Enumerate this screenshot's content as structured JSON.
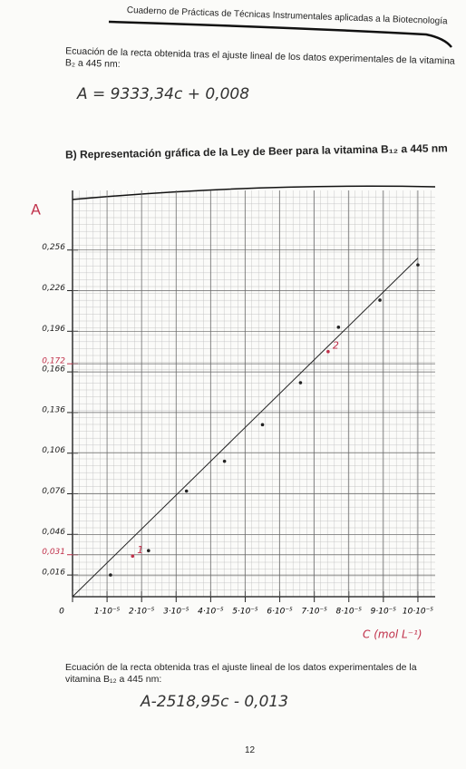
{
  "header": {
    "title": "Cuaderno de Prácticas de Técnicas Instrumentales aplicadas a la Biotecnología"
  },
  "paragraph_1": "Ecuación de la recta obtenida tras el ajuste lineal de los datos experimentales de la vitamina B₂ a 445 nm:",
  "equation_1": "A = 9333,34c + 0,008",
  "section_title": "B) Representación gráfica de la Ley de Beer para la vitamina B₁₂ a 445 nm",
  "chart_data": {
    "type": "scatter",
    "y_label": "A",
    "x_label": "C (mol L⁻¹)",
    "x": [
      1.1e-05,
      1.74e-05,
      2.2e-05,
      3.3e-05,
      4.4e-05,
      5.5e-05,
      6.6e-05,
      7.4e-05,
      7.7e-05,
      8.9e-05,
      0.0001
    ],
    "values": [
      0.016,
      0.03,
      0.034,
      0.078,
      0.1,
      0.127,
      0.158,
      0.181,
      0.199,
      0.219,
      0.245
    ],
    "colors": [
      "#222222",
      "#c0304a",
      "#222222",
      "#222222",
      "#222222",
      "#222222",
      "#222222",
      "#c0304a",
      "#222222",
      "#222222",
      "#222222"
    ],
    "fit": {
      "x": [
        0,
        0.0001
      ],
      "values": [
        0,
        0.25
      ]
    },
    "annotations": [
      {
        "text": "1",
        "x": 1.74e-05,
        "y": 0.03
      },
      {
        "text": "2",
        "x": 7.4e-05,
        "y": 0.181
      }
    ],
    "xlim": [
      0,
      0.000105
    ],
    "ylim": [
      0,
      0.3
    ],
    "xticks": [
      0,
      {
        "value": 1e-05,
        "label": "1·10⁻⁵"
      },
      {
        "value": 2e-05,
        "label": "2·10⁻⁵"
      },
      {
        "value": 3e-05,
        "label": "3·10⁻⁵"
      },
      {
        "value": 4e-05,
        "label": "4·10⁻⁵"
      },
      {
        "value": 5e-05,
        "label": "5·10⁻⁵"
      },
      {
        "value": 6e-05,
        "label": "6·10⁻⁵"
      },
      {
        "value": 7e-05,
        "label": "7·10⁻⁵"
      },
      {
        "value": 8e-05,
        "label": "8·10⁻⁵"
      },
      {
        "value": 9e-05,
        "label": "9·10⁻⁵"
      },
      {
        "value": 0.0001,
        "label": "10·10⁻⁵"
      }
    ],
    "yticks": [
      {
        "value": 0.016,
        "label": "0,016"
      },
      {
        "value": 0.031,
        "label": "0,031",
        "color": "#c0304a"
      },
      {
        "value": 0.046,
        "label": "0,046"
      },
      {
        "value": 0.076,
        "label": "0,076"
      },
      {
        "value": 0.106,
        "label": "0,106"
      },
      {
        "value": 0.136,
        "label": "0,136"
      },
      {
        "value": 0.166,
        "label": "0,166"
      },
      {
        "value": 0.172,
        "label": "0,172",
        "color": "#c0304a"
      },
      {
        "value": 0.196,
        "label": "0,196"
      },
      {
        "value": 0.226,
        "label": "0,226"
      },
      {
        "value": 0.256,
        "label": "0,256"
      }
    ],
    "grid": true
  },
  "paragraph_2": "Ecuación de la recta obtenida tras el ajuste lineal de los datos experimentales de la vitamina B₁₂ a 445 nm:",
  "equation_2": "A-2518,95c - 0,013",
  "page_number": "12"
}
